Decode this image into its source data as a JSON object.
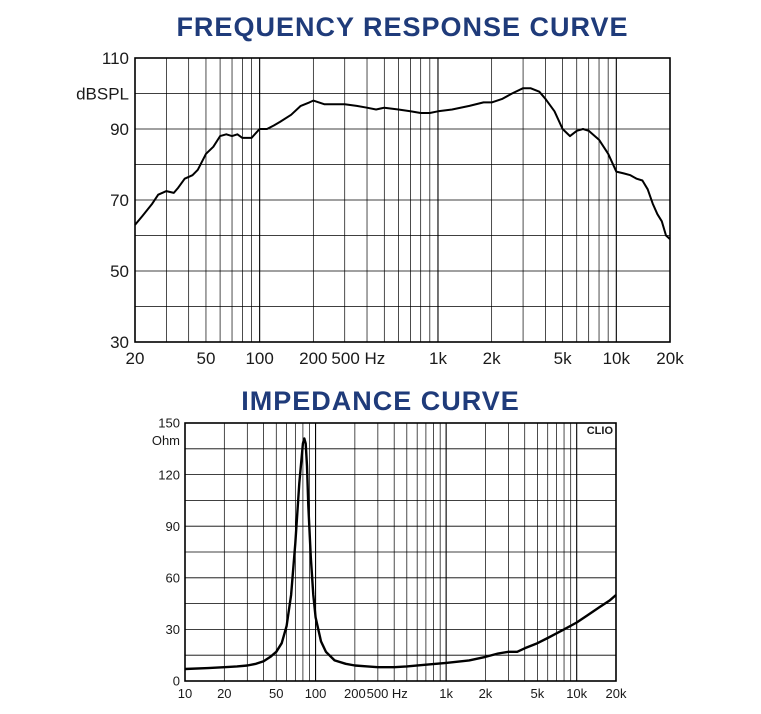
{
  "chart_data": [
    {
      "type": "line",
      "title": "FREQUENCY RESPONSE CURVE",
      "ylabel": "dBSPL",
      "xlabel": "",
      "x_scale": "log",
      "xlim": [
        20,
        20000
      ],
      "ylim": [
        30,
        110
      ],
      "y_ticks": [
        "110",
        "90",
        "70",
        "50",
        "30"
      ],
      "x_ticks": [
        "20",
        "50",
        "100",
        "200",
        "500 Hz",
        "1k",
        "2k",
        "5k",
        "10k",
        "20k"
      ],
      "grid": true,
      "series": [
        {
          "x": [
            20,
            22,
            25,
            27,
            30,
            33,
            35,
            38,
            42,
            45,
            50,
            55,
            60,
            65,
            70,
            75,
            80,
            85,
            90,
            100,
            110,
            120,
            130,
            150,
            170,
            190,
            200,
            230,
            260,
            300,
            350,
            400,
            450,
            500,
            600,
            700,
            800,
            900,
            1000,
            1200,
            1500,
            1800,
            2000,
            2300,
            2600,
            3000,
            3300,
            3700,
            4000,
            4500,
            5000,
            5500,
            6000,
            6500,
            7000,
            8000,
            9000,
            10000,
            11000,
            12000,
            13000,
            14000,
            15000,
            16000,
            17000,
            18000,
            19000,
            20000
          ],
          "y": [
            63,
            65.5,
            69,
            71.5,
            72.5,
            72,
            73.5,
            76,
            77,
            78.5,
            83,
            85,
            88,
            88.5,
            88,
            88.5,
            87.5,
            87.5,
            87.5,
            90,
            90,
            91,
            92,
            94,
            96.5,
            97.5,
            98,
            97,
            97,
            97,
            96.5,
            96,
            95.5,
            96,
            95.5,
            95,
            94.5,
            94.5,
            95,
            95.5,
            96.5,
            97.5,
            97.5,
            98.5,
            100,
            101.5,
            101.5,
            100.5,
            98.5,
            95,
            90,
            88,
            89.5,
            90,
            89.5,
            87,
            83,
            78,
            77.5,
            77,
            76,
            75.5,
            73,
            69,
            66,
            64,
            60,
            59
          ]
        }
      ]
    },
    {
      "type": "line",
      "title": "IMPEDANCE CURVE",
      "ylabel": "Ohm",
      "xlabel": "",
      "x_scale": "log",
      "xlim": [
        10,
        20000
      ],
      "ylim": [
        0,
        150
      ],
      "y_ticks": [
        "150",
        "120",
        "90",
        "60",
        "30",
        "0"
      ],
      "x_ticks": [
        "10",
        "20",
        "50",
        "100",
        "200",
        "500 Hz",
        "1k",
        "2k",
        "5k",
        "10k",
        "20k"
      ],
      "grid": true,
      "annotation": "CLIO",
      "series": [
        {
          "x": [
            10,
            15,
            20,
            25,
            30,
            35,
            40,
            45,
            50,
            55,
            60,
            65,
            70,
            75,
            80,
            82,
            84,
            86,
            88,
            92,
            96,
            100,
            110,
            120,
            140,
            170,
            200,
            250,
            300,
            400,
            500,
            700,
            1000,
            1500,
            2000,
            2500,
            3000,
            3500,
            4000,
            5000,
            6000,
            8000,
            10000,
            12000,
            15000,
            18000,
            20000
          ],
          "y": [
            7,
            7.5,
            8,
            8.5,
            9,
            10,
            11.5,
            14,
            17,
            22,
            32,
            50,
            80,
            115,
            138,
            141,
            138,
            125,
            102,
            72,
            50,
            37,
            23,
            17,
            12,
            10,
            9,
            8.5,
            8,
            8,
            8.5,
            9.5,
            10.5,
            12,
            14,
            16,
            17,
            17,
            19,
            22,
            25,
            30,
            34,
            38,
            43,
            47,
            50
          ]
        }
      ]
    }
  ]
}
